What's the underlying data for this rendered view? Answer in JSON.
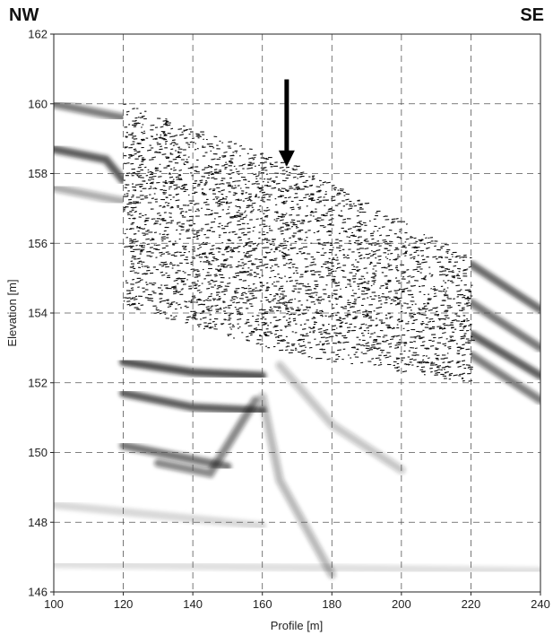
{
  "chart_data": {
    "type": "heatmap",
    "title": "",
    "xlabel": "Profile [m]",
    "ylabel": "Elevation [m]",
    "xlim": [
      100,
      240
    ],
    "ylim": [
      146,
      162
    ],
    "x_ticks": [
      100,
      120,
      140,
      160,
      180,
      200,
      220,
      240
    ],
    "y_ticks": [
      146,
      148,
      150,
      152,
      154,
      156,
      158,
      160,
      162
    ],
    "grid": true,
    "grid_style": "dashed",
    "corner_labels": {
      "left": "NW",
      "right": "SE"
    },
    "arrow_marker": {
      "x": 167,
      "y_from": 160.7,
      "y_to": 158.2
    },
    "dense_section_polygon": [
      [
        120,
        160
      ],
      [
        168,
        158.3
      ],
      [
        220,
        155.6
      ],
      [
        220,
        152
      ],
      [
        168,
        152.8
      ],
      [
        120,
        154.2
      ]
    ],
    "background_reflector_bands": [
      {
        "points": [
          [
            100,
            160
          ],
          [
            120,
            159.6
          ]
        ],
        "intensity": 0.55
      },
      {
        "points": [
          [
            100,
            158.7
          ],
          [
            115,
            158.4
          ],
          [
            120,
            157.8
          ]
        ],
        "intensity": 0.7
      },
      {
        "points": [
          [
            100,
            157.6
          ],
          [
            120,
            157.2
          ]
        ],
        "intensity": 0.35
      },
      {
        "points": [
          [
            120,
            152.6
          ],
          [
            140,
            152.3
          ],
          [
            160,
            152.2
          ]
        ],
        "intensity": 0.75
      },
      {
        "points": [
          [
            120,
            151.7
          ],
          [
            140,
            151.3
          ],
          [
            160,
            151.2
          ]
        ],
        "intensity": 0.7
      },
      {
        "points": [
          [
            120,
            150.2
          ],
          [
            140,
            149.8
          ],
          [
            150,
            149.6
          ]
        ],
        "intensity": 0.6
      },
      {
        "points": [
          [
            130,
            149.7
          ],
          [
            145,
            149.4
          ],
          [
            158,
            151.5
          ]
        ],
        "intensity": 0.5
      },
      {
        "points": [
          [
            160,
            151.6
          ],
          [
            165,
            149.2
          ],
          [
            180,
            146.5
          ]
        ],
        "intensity": 0.3
      },
      {
        "points": [
          [
            165,
            152.5
          ],
          [
            180,
            150.8
          ],
          [
            200,
            149.5
          ]
        ],
        "intensity": 0.25
      },
      {
        "points": [
          [
            100,
            148.5
          ],
          [
            160,
            147.9
          ]
        ],
        "intensity": 0.15
      },
      {
        "points": [
          [
            100,
            146.8
          ],
          [
            240,
            146.6
          ]
        ],
        "intensity": 0.12
      },
      {
        "points": [
          [
            220,
            155.4
          ],
          [
            240,
            154.1
          ]
        ],
        "intensity": 0.65
      },
      {
        "points": [
          [
            220,
            154.3
          ],
          [
            240,
            153.0
          ]
        ],
        "intensity": 0.6
      },
      {
        "points": [
          [
            220,
            153.4
          ],
          [
            240,
            152.2
          ]
        ],
        "intensity": 0.7
      },
      {
        "points": [
          [
            220,
            152.8
          ],
          [
            240,
            151.5
          ]
        ],
        "intensity": 0.55
      }
    ]
  },
  "colors": {
    "axis": "#222222",
    "grid": "#555555",
    "reflector": "#1a1a1a"
  }
}
